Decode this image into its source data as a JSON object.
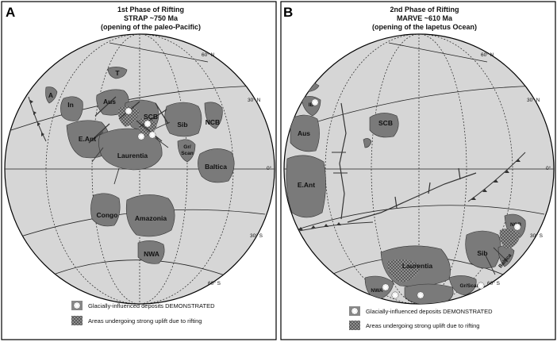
{
  "panel_a": {
    "letter": "A",
    "title": "1st Phase of Rifting",
    "subtitle": "STRAP ~750 Ma",
    "caption": "(opening of the paleo-Pacific)",
    "lat_labels": [
      "60° N",
      "30° N",
      "0°",
      "30° S",
      "60° S"
    ],
    "labels": {
      "T": "T",
      "A": "A",
      "In": "In",
      "Aus": "Aus",
      "SCB": "SCB",
      "Sib": "Sib",
      "NCB": "NCB",
      "EAnt": "E.Ant",
      "Laurentia": "Laurentia",
      "Gr": "Gr/",
      "Scan": "Scan",
      "Baltica": "Baltica",
      "Congo": "Congo",
      "Amazonia": "Amazonia",
      "NWA": "NWA"
    }
  },
  "panel_b": {
    "letter": "B",
    "title": "2nd Phase of Rifting",
    "subtitle": "MARVE ~610 Ma",
    "caption": "(opening of the Iapetus Ocean)",
    "lat_labels": [
      "60° N",
      "30° N",
      "0°",
      "30° S",
      "60° S"
    ],
    "labels": {
      "IB": "IB",
      "Aus": "Aus",
      "SCB": "SCB",
      "EAnt": "E.Ant",
      "Laurentia": "Laurentia",
      "NWA": "NWA",
      "GrScan": "Gr/Scan",
      "Sib": "Sib",
      "NCB": "NCB",
      "Baltica": "Baltica"
    }
  },
  "legend": {
    "glacial": "Glacially-influenced deposits DEMONSTRATED",
    "uplift": "Areas undergoing strong uplift due to rifting"
  },
  "colors": {
    "ocean": "#d6d6d6",
    "continent": "#7a7a7a",
    "frame": "#000000"
  }
}
